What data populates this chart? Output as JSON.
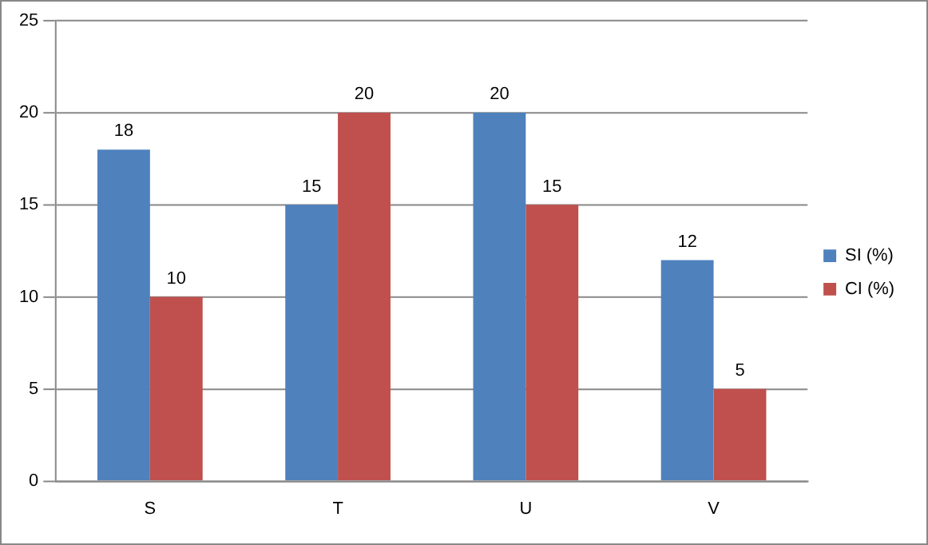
{
  "chart_data": {
    "type": "bar",
    "categories": [
      "S",
      "T",
      "U",
      "V"
    ],
    "series": [
      {
        "name": "SI (%)",
        "color": "#4f81bd",
        "values": [
          18,
          15,
          20,
          12
        ]
      },
      {
        "name": "CI (%)",
        "color": "#c0504d",
        "values": [
          10,
          20,
          15,
          5
        ]
      }
    ],
    "ylim": [
      0,
      25
    ],
    "yticks": [
      0,
      5,
      10,
      15,
      20,
      25
    ],
    "grid": "y",
    "legend": "right",
    "data_labels": true
  }
}
